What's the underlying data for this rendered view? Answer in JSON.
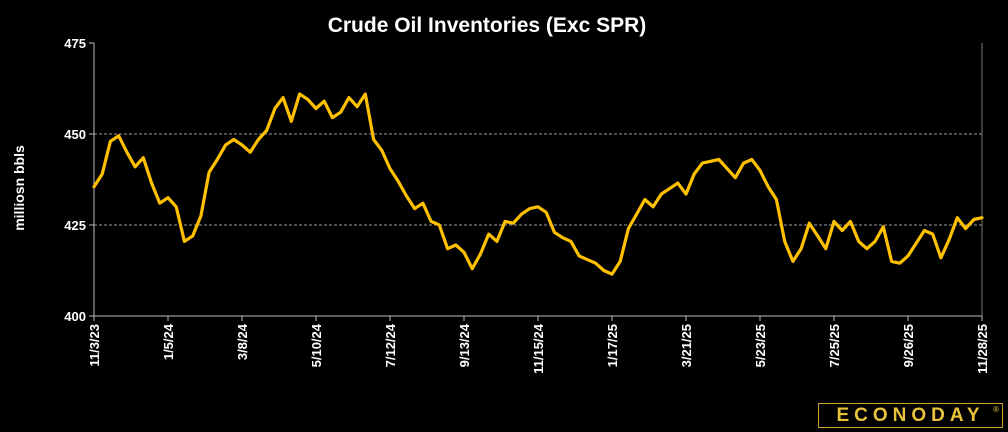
{
  "chart_data": {
    "type": "line",
    "title": "Crude Oil Inventories (Exc SPR)",
    "xlabel": "",
    "ylabel": "milliosn bbls",
    "ylim": [
      400,
      475
    ],
    "yticks": [
      400,
      425,
      450,
      475
    ],
    "gridlines": [
      425,
      450
    ],
    "grid": "dashed horizontal at 425 and 450",
    "legend": "none",
    "line_color": "#ffc000",
    "xticklabels": [
      "11/3/23",
      "1/5/24",
      "3/8/24",
      "5/10/24",
      "7/12/24",
      "9/13/24",
      "11/15/24",
      "1/17/25",
      "3/21/25",
      "5/23/25",
      "7/25/25",
      "9/26/25",
      "11/28/25"
    ],
    "series": [
      {
        "values": [
          435.5,
          439,
          448,
          449.5,
          445,
          441,
          443.5,
          436.5,
          431,
          432.5,
          430,
          420.5,
          422,
          427.5,
          439.5,
          443,
          447,
          448.5,
          447,
          445,
          448.5,
          451,
          457,
          460,
          453.5,
          461,
          459.5,
          457,
          459,
          454.5,
          456,
          460,
          457.5,
          461,
          448.5,
          445.5,
          440.5,
          437,
          433,
          429.5,
          431,
          426,
          425,
          418.5,
          419.5,
          417.5,
          413,
          417,
          422.5,
          420.5,
          426,
          425.5,
          428,
          429.5,
          430,
          428.5,
          423,
          421.5,
          420.5,
          416.5,
          415.5,
          414.5,
          412.5,
          411.5,
          415,
          424,
          428,
          432,
          430,
          433.5,
          435,
          436.5,
          433.5,
          439,
          442,
          442.5,
          443,
          440.5,
          438,
          442,
          443,
          440,
          435.5,
          432,
          420.5,
          415,
          418.5,
          425.5,
          422,
          418.5,
          426,
          423.5,
          426,
          420.5,
          418.5,
          420.5,
          424.5,
          415,
          414.5,
          416.5,
          420,
          423.5,
          422.5,
          416,
          421,
          427,
          424,
          426.5,
          427
        ]
      }
    ]
  },
  "logo": {
    "text": "ECONODAY",
    "mark": "®",
    "color": "#e8c33a"
  }
}
